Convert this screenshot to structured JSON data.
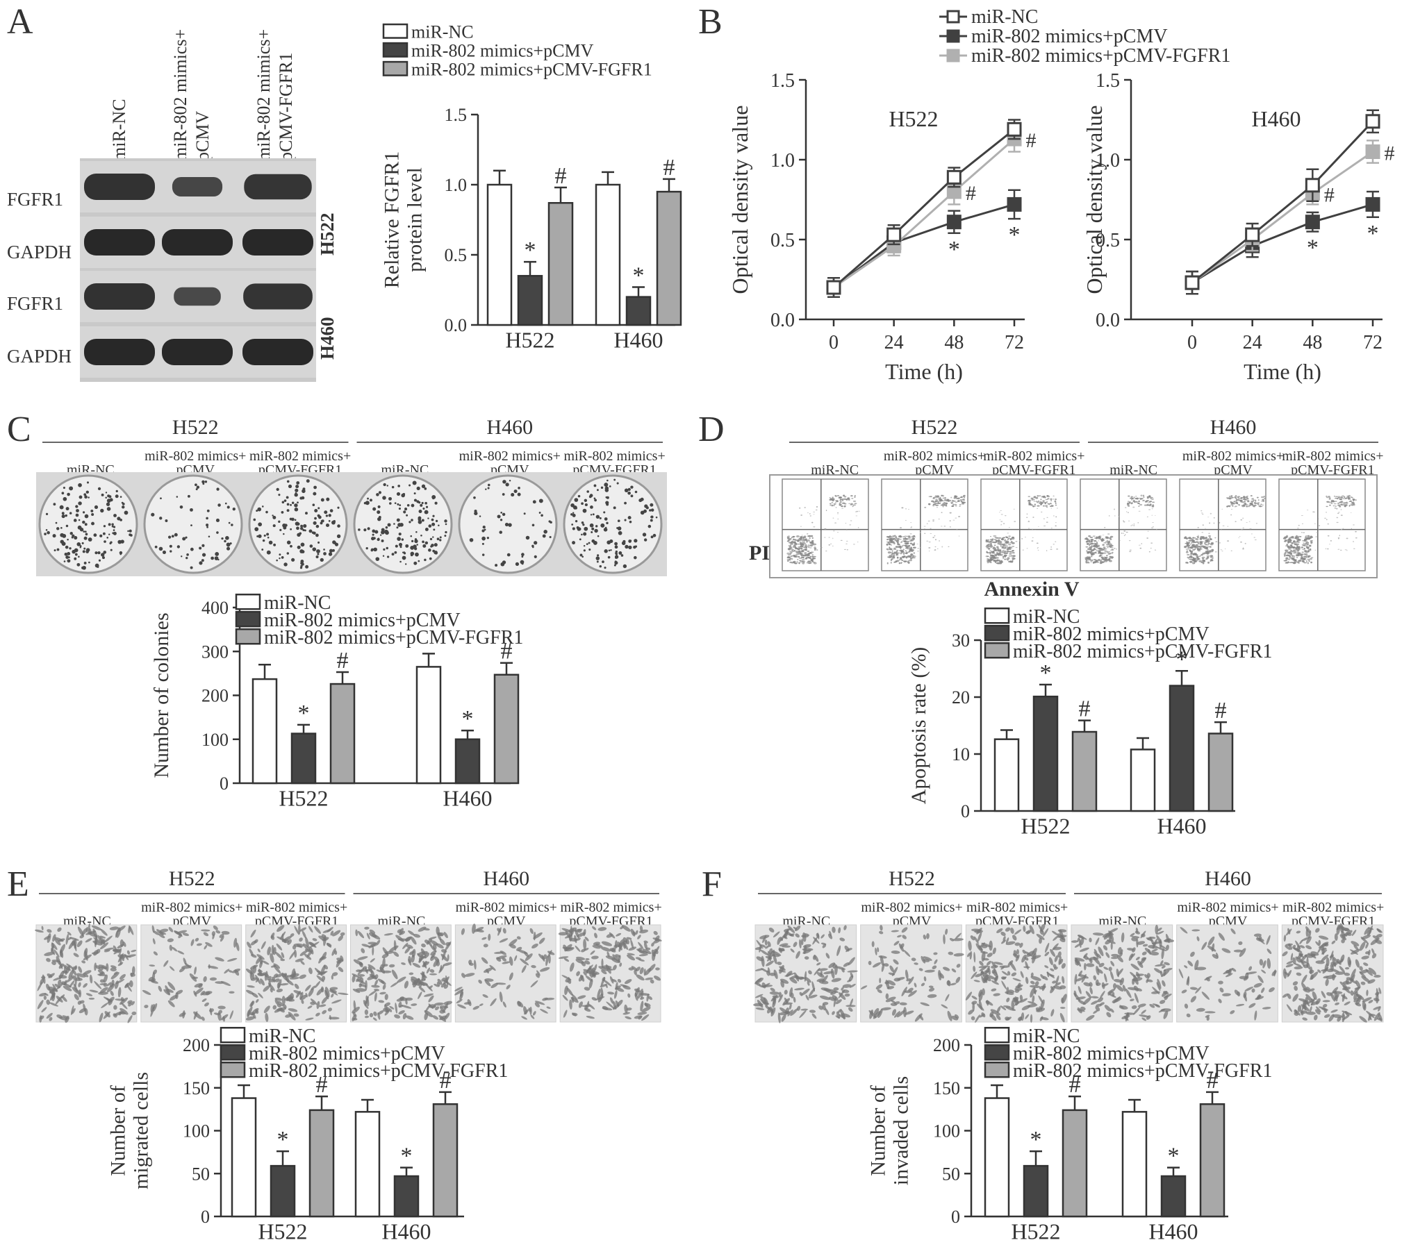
{
  "colors": {
    "series": [
      "#ffffff",
      "#454545",
      "#a8a8a8"
    ],
    "line_series": [
      "#404040",
      "#404040",
      "#b0b0b0"
    ],
    "ink": "#333333"
  },
  "series_names": [
    "miR-NC",
    "miR-802 mimics+pCMV",
    "miR-802 mimics+pCMV-FGFR1"
  ],
  "panel_letters": {
    "A": "A",
    "B": "B",
    "C": "C",
    "D": "D",
    "E": "E",
    "F": "F"
  },
  "sig": {
    "star": "*",
    "hash": "#"
  },
  "blot": {
    "lanes": [
      "miR-NC",
      "miR-802 mimics+\npCMV",
      "miR-802 mimics+\npCMV-FGFR1"
    ],
    "rows": [
      "FGFR1",
      "GAPDH",
      "FGFR1",
      "GAPDH"
    ],
    "cells": [
      "H522",
      "H460"
    ],
    "intensity": [
      [
        1.0,
        0.35,
        0.9
      ],
      [
        1.0,
        1.0,
        1.0
      ],
      [
        1.0,
        0.25,
        0.95
      ],
      [
        1.0,
        1.0,
        1.0
      ]
    ]
  },
  "dish_headers": {
    "cells": [
      "H522",
      "H460"
    ],
    "conditions": [
      "miR-NC",
      "miR-802 mimics+\npCMV",
      "miR-802 mimics+\npCMV-FGFR1"
    ]
  },
  "flow": {
    "ylabel": "PI",
    "xlabel": "Annexin V"
  },
  "chart_data": [
    {
      "id": "A_bar",
      "type": "bar",
      "categories": [
        "H522",
        "H460"
      ],
      "series": [
        {
          "name": "miR-NC",
          "values": [
            1.0,
            1.0
          ],
          "errors": [
            0.1,
            0.09
          ],
          "marks": [
            "",
            ""
          ]
        },
        {
          "name": "miR-802 mimics+pCMV",
          "values": [
            0.35,
            0.2
          ],
          "errors": [
            0.1,
            0.07
          ],
          "marks": [
            "*",
            "*"
          ]
        },
        {
          "name": "miR-802 mimics+pCMV-FGFR1",
          "values": [
            0.87,
            0.95
          ],
          "errors": [
            0.11,
            0.09
          ],
          "marks": [
            "#",
            "#"
          ]
        }
      ],
      "ylabel": "Relative FGFR1\nprotein level",
      "ylim": [
        0,
        1.5
      ],
      "yticks": [
        0.0,
        0.5,
        1.0,
        1.5
      ],
      "ytick_labels": [
        "0.0",
        "0.5",
        "1.0",
        "1.5"
      ],
      "legend": "top"
    },
    {
      "id": "B_H522",
      "type": "line",
      "title": "H522",
      "x": [
        0,
        24,
        48,
        72
      ],
      "xtick_labels": [
        "0",
        "24",
        "48",
        "72"
      ],
      "series": [
        {
          "name": "miR-NC",
          "values": [
            0.2,
            0.53,
            0.89,
            1.19
          ],
          "errors": [
            0.06,
            0.06,
            0.06,
            0.06
          ],
          "marks": [
            "",
            "",
            "",
            ""
          ]
        },
        {
          "name": "miR-802 mimics+pCMV",
          "values": [
            0.2,
            0.48,
            0.61,
            0.72
          ],
          "errors": [
            0.06,
            0.06,
            0.07,
            0.09
          ],
          "marks": [
            "",
            "",
            "*",
            "*"
          ]
        },
        {
          "name": "miR-802 mimics+pCMV-FGFR1",
          "values": [
            0.2,
            0.46,
            0.8,
            1.13
          ],
          "errors": [
            0.06,
            0.06,
            0.08,
            0.08
          ],
          "marks": [
            "",
            "",
            "#",
            "#"
          ]
        }
      ],
      "xlabel": "Time (h)",
      "ylabel": "Optical density value",
      "ylim": [
        0,
        1.5
      ],
      "yticks": [
        0.0,
        0.5,
        1.0,
        1.5
      ],
      "ytick_labels": [
        "0.0",
        "0.5",
        "1.0",
        "1.5"
      ],
      "legend": "top"
    },
    {
      "id": "B_H460",
      "type": "line",
      "title": "H460",
      "x": [
        0,
        24,
        48,
        72
      ],
      "xtick_labels": [
        "0",
        "24",
        "48",
        "72"
      ],
      "series": [
        {
          "name": "miR-NC",
          "values": [
            0.23,
            0.53,
            0.84,
            1.24
          ],
          "errors": [
            0.07,
            0.07,
            0.1,
            0.07
          ],
          "marks": [
            "",
            "",
            "",
            ""
          ]
        },
        {
          "name": "miR-802 mimics+pCMV",
          "values": [
            0.23,
            0.46,
            0.61,
            0.72
          ],
          "errors": [
            0.07,
            0.07,
            0.06,
            0.08
          ],
          "marks": [
            "",
            "",
            "*",
            "*"
          ]
        },
        {
          "name": "miR-802 mimics+pCMV-FGFR1",
          "values": [
            0.23,
            0.5,
            0.79,
            1.05
          ],
          "errors": [
            0.07,
            0.07,
            0.07,
            0.07
          ],
          "marks": [
            "",
            "",
            "#",
            "#"
          ]
        }
      ],
      "xlabel": "Time (h)",
      "ylabel": "Optical density value",
      "ylim": [
        0,
        1.5
      ],
      "yticks": [
        0.0,
        0.5,
        1.0,
        1.5
      ],
      "ytick_labels": [
        "0.0",
        "0.5",
        "1.0",
        "1.5"
      ]
    },
    {
      "id": "C_bar",
      "type": "bar",
      "categories": [
        "H522",
        "H460"
      ],
      "series": [
        {
          "name": "miR-NC",
          "values": [
            237,
            265
          ],
          "errors": [
            33,
            30
          ],
          "marks": [
            "",
            ""
          ]
        },
        {
          "name": "miR-802 mimics+pCMV",
          "values": [
            113,
            100
          ],
          "errors": [
            20,
            20
          ],
          "marks": [
            "*",
            "*"
          ]
        },
        {
          "name": "miR-802 mimics+pCMV-FGFR1",
          "values": [
            226,
            247
          ],
          "errors": [
            27,
            27
          ],
          "marks": [
            "#",
            "#"
          ]
        }
      ],
      "ylabel": "Number of colonies",
      "ylim": [
        0,
        400
      ],
      "yticks": [
        0,
        100,
        200,
        300,
        400
      ],
      "ytick_labels": [
        "0",
        "100",
        "200",
        "300",
        "400"
      ],
      "legend": "top"
    },
    {
      "id": "D_bar",
      "type": "bar",
      "categories": [
        "H522",
        "H460"
      ],
      "series": [
        {
          "name": "miR-NC",
          "values": [
            12.6,
            10.8
          ],
          "errors": [
            1.6,
            2.0
          ],
          "marks": [
            "",
            ""
          ]
        },
        {
          "name": "miR-802 mimics+pCMV",
          "values": [
            20.1,
            22.0
          ],
          "errors": [
            2.1,
            2.6
          ],
          "marks": [
            "*",
            "*"
          ]
        },
        {
          "name": "miR-802 mimics+pCMV-FGFR1",
          "values": [
            13.9,
            13.6
          ],
          "errors": [
            2.0,
            2.0
          ],
          "marks": [
            "#",
            "#"
          ]
        }
      ],
      "ylabel": "Apoptosis rate (%)",
      "ylim": [
        0,
        30
      ],
      "yticks": [
        0,
        10,
        20,
        30
      ],
      "ytick_labels": [
        "0",
        "10",
        "20",
        "30"
      ],
      "legend": "top"
    },
    {
      "id": "E_bar",
      "type": "bar",
      "categories": [
        "H522",
        "H460"
      ],
      "series": [
        {
          "name": "miR-NC",
          "values": [
            138,
            122
          ],
          "errors": [
            15,
            14
          ],
          "marks": [
            "",
            ""
          ]
        },
        {
          "name": "miR-802 mimics+pCMV",
          "values": [
            59,
            47
          ],
          "errors": [
            17,
            10
          ],
          "marks": [
            "*",
            "*"
          ]
        },
        {
          "name": "miR-802 mimics+pCMV-FGFR1",
          "values": [
            124,
            131
          ],
          "errors": [
            16,
            14
          ],
          "marks": [
            "#",
            "#"
          ]
        }
      ],
      "ylabel": "Number of\nmigrated cells",
      "ylim": [
        0,
        200
      ],
      "yticks": [
        0,
        50,
        100,
        150,
        200
      ],
      "ytick_labels": [
        "0",
        "50",
        "100",
        "150",
        "200"
      ],
      "legend": "top"
    },
    {
      "id": "F_bar",
      "type": "bar",
      "categories": [
        "H522",
        "H460"
      ],
      "series": [
        {
          "name": "miR-NC",
          "values": [
            138,
            122
          ],
          "errors": [
            15,
            14
          ],
          "marks": [
            "",
            ""
          ]
        },
        {
          "name": "miR-802 mimics+pCMV",
          "values": [
            59,
            47
          ],
          "errors": [
            17,
            10
          ],
          "marks": [
            "*",
            "*"
          ]
        },
        {
          "name": "miR-802 mimics+pCMV-FGFR1",
          "values": [
            124,
            131
          ],
          "errors": [
            16,
            14
          ],
          "marks": [
            "#",
            "#"
          ]
        }
      ],
      "ylabel": "Number of\ninvaded cells",
      "ylim": [
        0,
        200
      ],
      "yticks": [
        0,
        50,
        100,
        150,
        200
      ],
      "ytick_labels": [
        "0",
        "50",
        "100",
        "150",
        "200"
      ],
      "legend": "top"
    }
  ]
}
